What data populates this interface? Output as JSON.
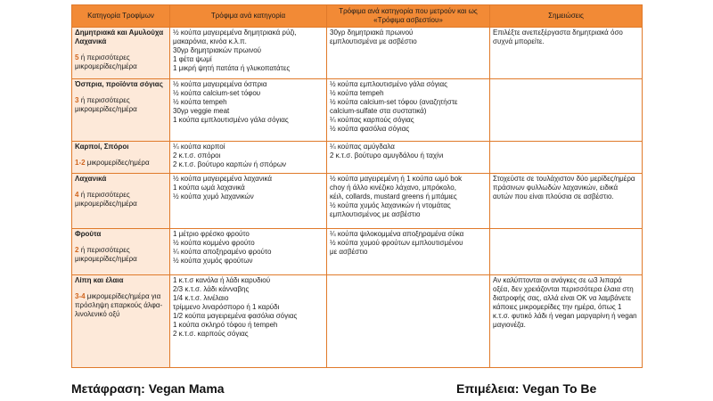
{
  "table": {
    "headers": [
      "Κατηγορία Τροφίμων",
      "Τρόφιμα ανά κατηγορία",
      "Τρόφιμα ανά κατηγορία που μετρούν και ως «Τρόφιμα ασβεστίου»",
      "Σημειώσεις"
    ],
    "rows": [
      {
        "group": "Δημητριακά και Αμυλούχα Λαχανικά",
        "serving_num": "5",
        "serving_text": "ή περισσότερες μικρομερίδες/ημέρα",
        "foods": [
          "½ κούπα μαγειρεμένα δημητριακά ρύζι,",
          "μακαρόνια, κινόα κ.λ.π.",
          "30γρ δημητριακών πρωινού",
          "1 φέτα ψωμί",
          "1 μικρή ψητή πατάτα ή γλυκοπατάτες"
        ],
        "calcium": [
          "30γρ δημητριακά πρωινού",
          "εμπλουτισμένα με ασβέστιο"
        ],
        "notes": "Επιλέξτε ανεπεξέργαστα δημητριακά όσο συχνά μπορείτε."
      },
      {
        "group": "Όσπρια, προϊόντα σόγιας",
        "serving_num": "3",
        "serving_text": "ή περισσότερες μικρομερίδες/ημέρα",
        "foods": [
          "½ κούπα μαγειρεμένα όσπρια",
          "½ κούπα calcium-set τόφου",
          "½ κούπα tempeh",
          "30γρ veggie meat",
          "1 κούπα εμπλουτισμένο γάλα σόγιας"
        ],
        "calcium": [
          "½ κούπα εμπλουτισμένο γάλα σόγιας",
          "½ κούπα tempeh",
          "½ κούπα calcium-set τόφου (αναζητήστε",
          "calcium-sulfate στα συστατικά)",
          "¼ κούπας καρπούς σόγιας",
          "½ κούπα φασόλια σόγιας"
        ],
        "notes": ""
      },
      {
        "group": "Καρποί, Σπόροι",
        "serving_num": "1-2",
        "serving_text": "μικρομερίδες/ημέρα",
        "foods": [
          "¼ κούπα καρποί",
          "2 κ.τ.σ. σπόροι",
          "2 κ.τ.σ. βούτυρο καρπών ή σπόρων"
        ],
        "calcium": [
          "¼ κούπας αμύγδαλα",
          "2 κ.τ.σ. βούτυρο αμυγδάλου ή ταχίνι"
        ],
        "notes": ""
      },
      {
        "group": "Λαχανικά",
        "serving_num": "4",
        "serving_text": "ή περισσότερες μικρομερίδες/ημέρα",
        "foods": [
          "½ κούπα μαγειρεμένα λαχανικά",
          "1 κούπα ωμά λαχανικά",
          "½ κούπα χυμό λαχανικών"
        ],
        "calcium": [
          "½ κούπα μαγειρεμένη ή 1 κούπα ωμό bok",
          "choy ή άλλο κινέζικο λάχανο, μπρόκολο,",
          "κέιλ, collards, mustard greens ή μπάμιες",
          "½ κούπα χυμός λαχανικών ή ντομάτας",
          "εμπλουτισμένος με ασβέστιο"
        ],
        "notes": "Στοχεύστε σε τουλάχιστον δύο μερίδες/ημέρα πράσινων φυλλωδών λαχανικών, ειδικά αυτών που είναι πλούσια σε ασβέστιο."
      },
      {
        "group": "Φρούτα",
        "serving_num": "2",
        "serving_text": "ή περισσότερες μικρομερίδες/ημέρα",
        "foods": [
          "1 μέτριο φρέσκο φρούτο",
          "½ κούπα κομμένο φρούτο",
          "¼ κούπα αποξηραμένο φρούτο",
          "½ κούπα χυμός φρούτων"
        ],
        "calcium": [
          "¼ κούπα ψιλοκομμένα αποξηραμένα σύκα",
          "½ κούπα χυμού φρούτων εμπλουτισμένου",
          "με ασβέστιο"
        ],
        "notes": ""
      },
      {
        "group": "Λίπη και έλαια",
        "serving_num": "3-4",
        "serving_text": "μικρομερίδες/ημέρα για πρόσληψη επαρκούς άλφα-λινολενικό οξύ",
        "foods": [
          "1 κ.τ.σ κανόλα ή λάδι καρυδιού",
          "2/3 κ.τ.σ. λάδι κάνναβης",
          "1/4 κ.τ.σ. λινέλαιο",
          "τρίμμενο λιναρόσπορο ή 1 καρύδι",
          "1/2 κούπα μαγειρεμένα φασόλια σόγιας",
          "1 κούπα σκληρό τόφου ή tempeh",
          "2 κ.τ.σ. καρπούς σόγιας"
        ],
        "calcium": [],
        "notes": "Αν καλύπτονται οι ανάγκες σε ω3 λιπαρά οξέα, δεν χρειάζονται περισσότερα έλαια στη διατροφής σας, αλλά είναι ΟΚ να λαμβάνετε κάποιες μικρομερίδες την ημέρα, όπως 1 κ.τ.σ. φυτικό λάδι ή vegan μαργαρίνη ή vegan μαγιονέζα."
      }
    ]
  },
  "footer": {
    "left": "Μετάφραση: Vegan Mama",
    "right": "Επιμέλεια: Vegan To Be"
  }
}
